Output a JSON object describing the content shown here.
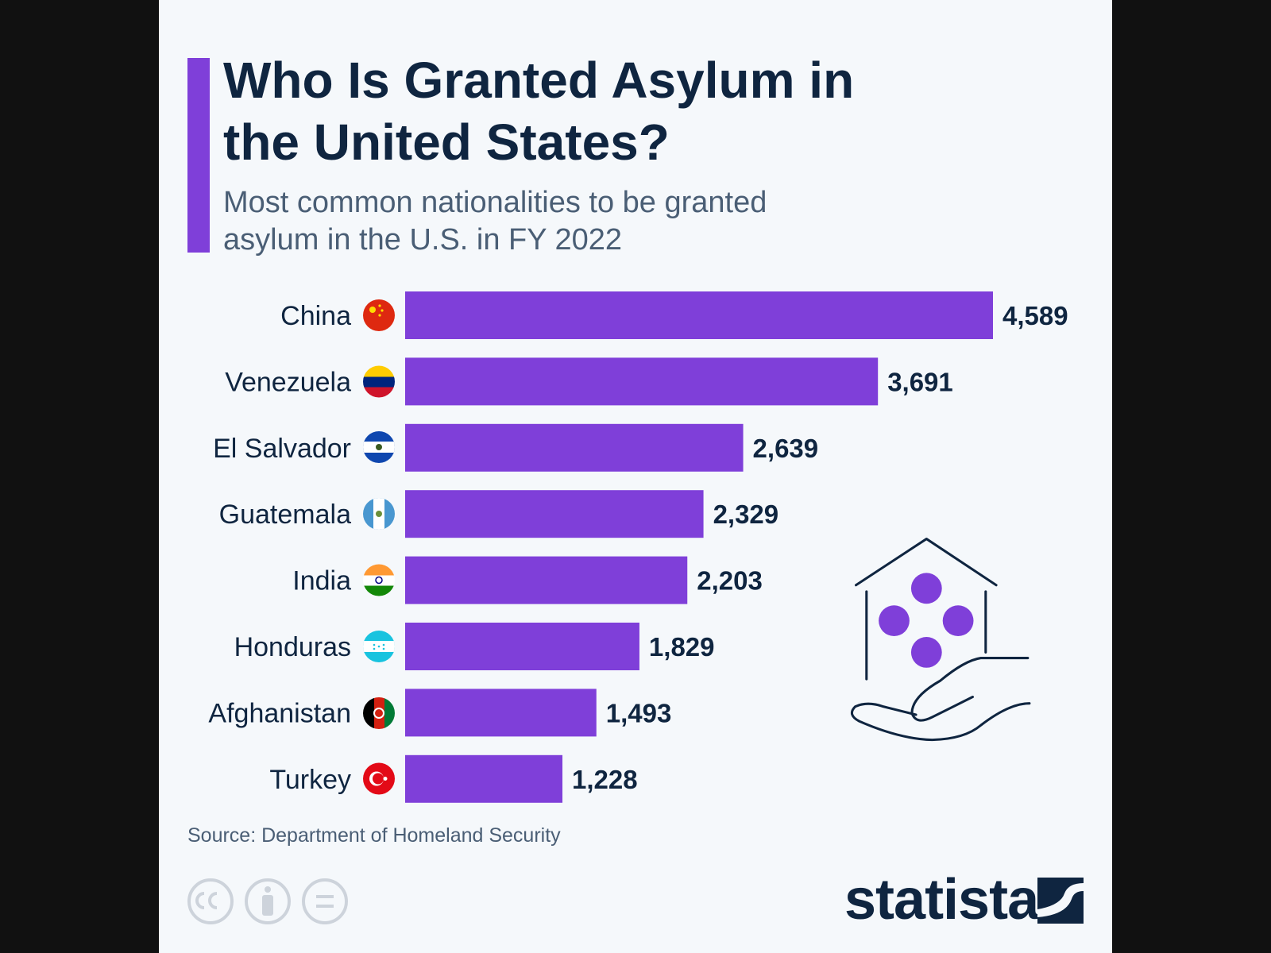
{
  "chart_data": {
    "type": "hbar",
    "title": "Who Is Granted Asylum in the United States?",
    "subtitle": "Most common nationalities to be granted asylum in the U.S. in FY 2022",
    "categories": [
      "China",
      "Venezuela",
      "El Salvador",
      "Guatemala",
      "India",
      "Honduras",
      "Afghanistan",
      "Turkey"
    ],
    "values": [
      4589,
      3691,
      2639,
      2329,
      2203,
      1829,
      1493,
      1228
    ],
    "value_labels": [
      "4,589",
      "3,691",
      "2,639",
      "2,329",
      "2,203",
      "1,829",
      "1,493",
      "1,228"
    ],
    "color": "#7f3fd9",
    "source": "Source: Department of Homeland Security",
    "brand": "statista"
  }
}
